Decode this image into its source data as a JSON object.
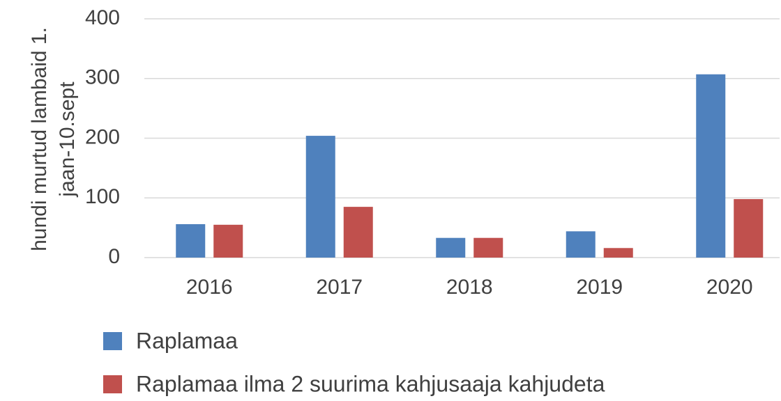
{
  "chart_data": {
    "type": "bar",
    "y_label": [
      "hundi murtud lambaid 1.",
      "jaan-10.sept"
    ],
    "categories": [
      "2016",
      "2017",
      "2018",
      "2019",
      "2020"
    ],
    "series": [
      {
        "name": "Raplamaa",
        "color": "#4f81bd",
        "values": [
          56,
          204,
          33,
          44,
          307
        ]
      },
      {
        "name": "Raplamaa ilma 2 suurima kahjusaaja kahjudeta",
        "color": "#c0504d",
        "values": [
          55,
          85,
          33,
          16,
          98
        ]
      }
    ],
    "ylim": [
      0,
      400
    ],
    "yticks": [
      0,
      100,
      200,
      300,
      400
    ],
    "grid": true,
    "legend": "bottom"
  }
}
